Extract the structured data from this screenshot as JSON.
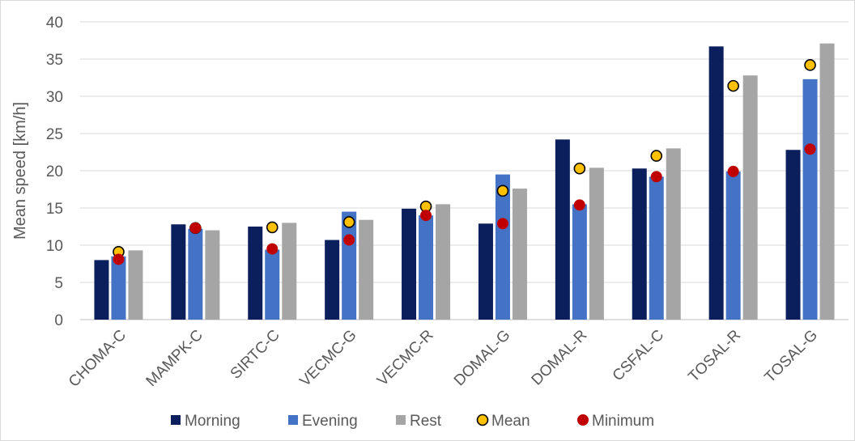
{
  "chart_data": {
    "type": "bar",
    "title": "",
    "xlabel": "",
    "ylabel": "Mean speed [km/h]",
    "ylim": [
      0,
      40
    ],
    "yticks": [
      0,
      5,
      10,
      15,
      20,
      25,
      30,
      35,
      40
    ],
    "grid": true,
    "legend_position": "bottom",
    "categories": [
      "CHOMA-C",
      "MAMPK-C",
      "SIRTC-C",
      "VECMC-G",
      "VECMC-R",
      "DOMAL-G",
      "DOMAL-R",
      "CSFAL-C",
      "TOSAL-R",
      "TOSAL-G"
    ],
    "series": [
      {
        "name": "Morning",
        "kind": "bar",
        "color": "#0b1f5c",
        "values": [
          8.0,
          12.8,
          12.5,
          10.7,
          14.9,
          12.9,
          24.2,
          20.3,
          36.7,
          22.8
        ]
      },
      {
        "name": "Evening",
        "kind": "bar",
        "color": "#4472c4",
        "values": [
          8.5,
          12.2,
          9.4,
          14.5,
          14.0,
          19.5,
          15.5,
          19.2,
          19.9,
          32.3
        ]
      },
      {
        "name": "Rest",
        "kind": "bar",
        "color": "#a5a5a5",
        "values": [
          9.3,
          12.0,
          13.0,
          13.4,
          15.5,
          17.6,
          20.4,
          23.0,
          32.8,
          37.1
        ]
      },
      {
        "name": "Mean",
        "kind": "marker",
        "color": "#ffc000",
        "values": [
          9.1,
          12.3,
          12.4,
          13.1,
          15.2,
          17.3,
          20.3,
          22.0,
          31.4,
          34.2
        ]
      },
      {
        "name": "Minimum",
        "kind": "marker",
        "color": "#c00000",
        "values": [
          8.1,
          12.3,
          9.5,
          10.7,
          14.0,
          12.9,
          15.4,
          19.2,
          19.9,
          22.9
        ]
      }
    ]
  }
}
